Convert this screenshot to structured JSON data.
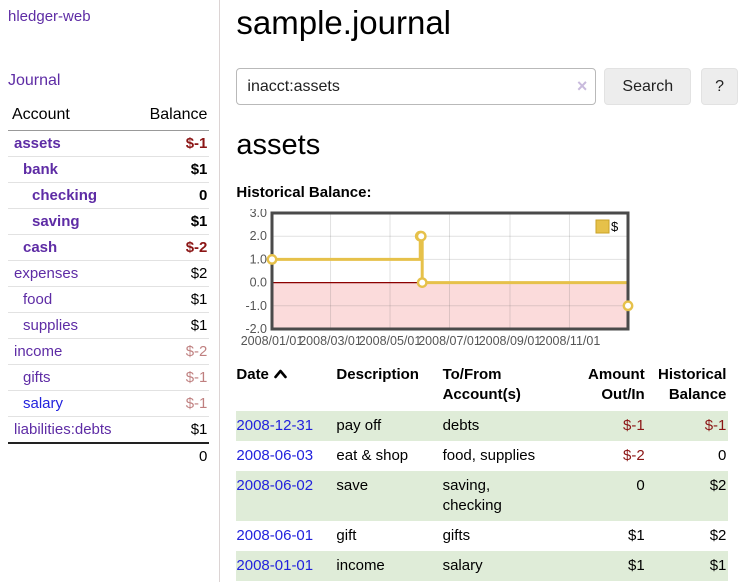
{
  "colors": {
    "link_purple": "#5e2ca5",
    "link_blue": "#2222dd",
    "negative_red": "#8b1515",
    "row_stripe_green": "#dfecd8",
    "chart_line_yellow": "#e6c14a",
    "chart_negative_pink": "#fbdbdb",
    "chart_zero_line": "#8b0000"
  },
  "sidebar": {
    "brand": "hledger-web",
    "nav": [
      {
        "label": "Journal"
      }
    ],
    "accounts_table": {
      "headers": {
        "account": "Account",
        "balance": "Balance"
      },
      "rows": [
        {
          "name": "assets",
          "depth": 1,
          "bold": true,
          "link_color": "purple",
          "balance": "$-1",
          "balance_style": "neg-strong"
        },
        {
          "name": "bank",
          "depth": 2,
          "bold": true,
          "link_color": "purple",
          "balance": "$1",
          "balance_style": "strong"
        },
        {
          "name": "checking",
          "depth": 3,
          "bold": true,
          "link_color": "purple",
          "balance": "0",
          "balance_style": "strong"
        },
        {
          "name": "saving",
          "depth": 3,
          "bold": true,
          "link_color": "purple",
          "balance": "$1",
          "balance_style": "strong"
        },
        {
          "name": "cash",
          "depth": 2,
          "bold": true,
          "link_color": "purple",
          "balance": "$-2",
          "balance_style": "neg-strong"
        },
        {
          "name": "expenses",
          "depth": 1,
          "bold": false,
          "link_color": "purple",
          "balance": "$2",
          "balance_style": ""
        },
        {
          "name": "food",
          "depth": 2,
          "bold": false,
          "link_color": "purple",
          "balance": "$1",
          "balance_style": ""
        },
        {
          "name": "supplies",
          "depth": 2,
          "bold": false,
          "link_color": "purple",
          "balance": "$1",
          "balance_style": ""
        },
        {
          "name": "income",
          "depth": 1,
          "bold": false,
          "link_color": "purple",
          "balance": "$-2",
          "balance_style": "neg-dim"
        },
        {
          "name": "gifts",
          "depth": 2,
          "bold": false,
          "link_color": "purple",
          "balance": "$-1",
          "balance_style": "neg-dim"
        },
        {
          "name": "salary",
          "depth": 2,
          "bold": false,
          "link_color": "blue",
          "balance": "$-1",
          "balance_style": "neg-dim"
        },
        {
          "name": "liabilities:debts",
          "depth": 1,
          "bold": false,
          "link_color": "purple",
          "balance": "$1",
          "balance_style": ""
        }
      ],
      "total": "0"
    }
  },
  "main": {
    "title": "sample.journal",
    "search": {
      "value": "inacct:assets",
      "clear_icon": "×",
      "button": "Search",
      "help_button": "?"
    },
    "section_title": "assets",
    "chart_label": "Historical Balance:"
  },
  "chart_data": {
    "type": "line",
    "step": true,
    "title": "Historical Balance:",
    "legend": {
      "label": "$",
      "position": "top-right"
    },
    "x_range": [
      "2008-01-01",
      "2008-12-31"
    ],
    "ylim": [
      -2.0,
      3.0
    ],
    "ytick_labels": [
      "3.0",
      "2.0",
      "1.0",
      "0.0",
      "-1.0",
      "-2.0"
    ],
    "xtick_labels": [
      "2008/01/01",
      "2008/03/01",
      "2008/05/01",
      "2008/07/01",
      "2008/09/01",
      "2008/11/01"
    ],
    "grid": true,
    "negative_region_fill": "#fbdbdb",
    "zero_line_color": "#8b0000",
    "series": [
      {
        "name": "$",
        "color": "#e6c14a",
        "points": [
          {
            "x": "2008-01-01",
            "y": 1
          },
          {
            "x": "2008-06-01",
            "y": 2
          },
          {
            "x": "2008-06-02",
            "y": 2
          },
          {
            "x": "2008-06-03",
            "y": 0
          },
          {
            "x": "2008-12-31",
            "y": -1
          }
        ]
      }
    ]
  },
  "transactions": {
    "headers": [
      {
        "label": "Date",
        "align": "left",
        "sort": "asc"
      },
      {
        "label": "Description",
        "align": "left"
      },
      {
        "label": "To/From Account(s)",
        "align": "left"
      },
      {
        "label": "Amount Out/In",
        "align": "right"
      },
      {
        "label": "Historical Balance",
        "align": "right"
      }
    ],
    "rows": [
      {
        "date": "2008-12-31",
        "description": "pay off",
        "accounts": "debts",
        "amount": "$-1",
        "amount_negative": true,
        "balance": "$-1",
        "balance_negative": true
      },
      {
        "date": "2008-06-03",
        "description": "eat & shop",
        "accounts": "food, supplies",
        "amount": "$-2",
        "amount_negative": true,
        "balance": "0",
        "balance_negative": false
      },
      {
        "date": "2008-06-02",
        "description": "save",
        "accounts": "saving, checking",
        "amount": "0",
        "amount_negative": false,
        "balance": "$2",
        "balance_negative": false
      },
      {
        "date": "2008-06-01",
        "description": "gift",
        "accounts": "gifts",
        "amount": "$1",
        "amount_negative": false,
        "balance": "$2",
        "balance_negative": false
      },
      {
        "date": "2008-01-01",
        "description": "income",
        "accounts": "salary",
        "amount": "$1",
        "amount_negative": false,
        "balance": "$1",
        "balance_negative": false
      }
    ]
  }
}
